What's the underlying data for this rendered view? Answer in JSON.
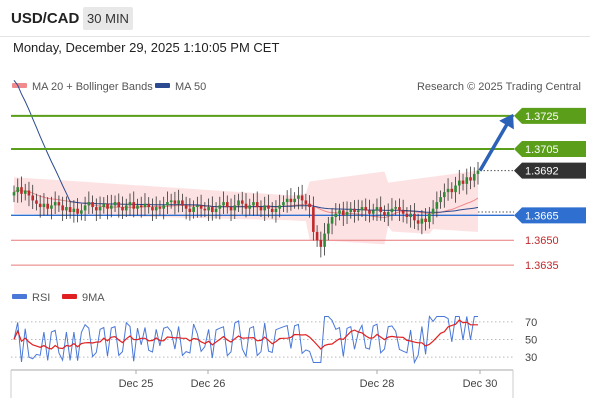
{
  "header": {
    "symbol": "USD/CAD",
    "timeframe": "30 MIN"
  },
  "timestamp": "Monday, December 29, 2025 1:10:05 PM CET",
  "legend": {
    "ma20_bb": "MA 20 + Bollinger Bands",
    "ma50": "MA 50",
    "credit": "Research © 2025 Trading Central"
  },
  "rsi_legend": {
    "rsi": "RSI",
    "ma9": "9MA"
  },
  "colors": {
    "resistance": "#5a9e1a",
    "support": "#2f6fcf",
    "support_light": "#e9797a",
    "price_tag": "#333333",
    "arrow": "#2b62b8",
    "bb_fill": "#fde2e3",
    "ma50": "#2b4a8f",
    "rsi": "#4a78d8",
    "rsi_ma": "#e02020",
    "candle_up": "#2e8a37",
    "candle_down": "#c0292b"
  },
  "chart_data": {
    "type": "candlestick",
    "x_tick_labels": [
      "Dec 25",
      "Dec 26",
      "Dec 28",
      "Dec 30"
    ],
    "ylim": [
      1.3626,
      1.3737
    ],
    "price_levels": [
      {
        "value": 1.3725,
        "label": "1.3725",
        "kind": "resistance"
      },
      {
        "value": 1.3705,
        "label": "1.3705",
        "kind": "resistance"
      },
      {
        "value": 1.3692,
        "label": "1.3692",
        "kind": "last"
      },
      {
        "value": 1.3665,
        "label": "1.3665",
        "kind": "support"
      },
      {
        "value": 1.365,
        "label": "1.3650",
        "kind": "support-light"
      },
      {
        "value": 1.3635,
        "label": "1.3635",
        "kind": "support-light"
      }
    ],
    "close": [
      1.3679,
      1.3682,
      1.3678,
      1.368,
      1.3677,
      1.3674,
      1.3672,
      1.367,
      1.3672,
      1.3669,
      1.3671,
      1.3673,
      1.3671,
      1.3668,
      1.367,
      1.3667,
      1.3669,
      1.3666,
      1.3668,
      1.3671,
      1.3673,
      1.367,
      1.3668,
      1.367,
      1.3672,
      1.3669,
      1.3671,
      1.3673,
      1.367,
      1.3668,
      1.3671,
      1.3673,
      1.3669,
      1.3671,
      1.367,
      1.3672,
      1.367,
      1.3668,
      1.367,
      1.3669,
      1.3671,
      1.3673,
      1.3674,
      1.3672,
      1.3674,
      1.3671,
      1.3669,
      1.3667,
      1.367,
      1.3671,
      1.3669,
      1.3668,
      1.367,
      1.3667,
      1.3669,
      1.3671,
      1.3673,
      1.367,
      1.3668,
      1.3671,
      1.3674,
      1.3672,
      1.3669,
      1.3671,
      1.3673,
      1.367,
      1.3668,
      1.3671,
      1.3669,
      1.3667,
      1.3669,
      1.3671,
      1.3673,
      1.3675,
      1.3673,
      1.3675,
      1.3677,
      1.3674,
      1.3672,
      1.367,
      1.3655,
      1.365,
      1.3646,
      1.3654,
      1.366,
      1.3664,
      1.3666,
      1.3668,
      1.3665,
      1.3667,
      1.3669,
      1.3667,
      1.3668,
      1.367,
      1.3668,
      1.3666,
      1.3668,
      1.367,
      1.3667,
      1.3665,
      1.3667,
      1.3669,
      1.367,
      1.3668,
      1.3666,
      1.3664,
      1.3666,
      1.3662,
      1.366,
      1.3663,
      1.3661,
      1.3666,
      1.3669,
      1.3673,
      1.3676,
      1.3679,
      1.3681,
      1.3679,
      1.3683,
      1.3686,
      1.3684,
      1.3688,
      1.3686,
      1.369,
      1.3692
    ],
    "bollinger": {
      "upper_start": 1.3688,
      "upper_mid": 1.3677,
      "upper_end": 1.3692,
      "lower_start": 1.3666,
      "lower_mid": 1.3662,
      "lower_end": 1.3655
    },
    "rsi": {
      "levels": [
        70,
        50,
        30
      ],
      "ylim": [
        20,
        80
      ]
    }
  }
}
